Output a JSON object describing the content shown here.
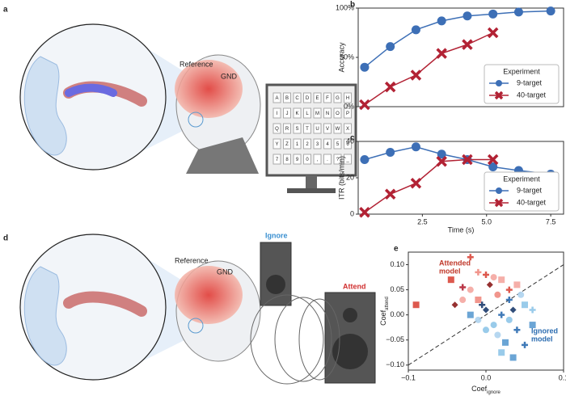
{
  "panels": {
    "a": "a",
    "d": "d"
  },
  "illustration_a": {
    "reference": "Reference",
    "gnd": "GND",
    "monitor_keys": [
      [
        "A",
        "B",
        "C",
        "D",
        "E",
        "F",
        "G",
        "H"
      ],
      [
        "I",
        "J",
        "K",
        "L",
        "M",
        "N",
        "O",
        "P"
      ],
      [
        "Q",
        "R",
        "S",
        "T",
        "U",
        "V",
        "W",
        "X"
      ],
      [
        "Y",
        "Z",
        "1",
        "2",
        "3",
        "4",
        "5",
        "6"
      ],
      [
        "7",
        "8",
        "9",
        "0",
        ",",
        ".",
        "?",
        "_"
      ]
    ]
  },
  "illustration_d": {
    "reference": "Reference",
    "gnd": "GND",
    "ignore": "Ignore",
    "attend": "Attend"
  },
  "chart_data": [
    {
      "type": "line",
      "label": "b",
      "ylabel": "Accuracy",
      "xlim": [
        0,
        8
      ],
      "ylim": [
        0,
        100
      ],
      "yticks": [
        {
          "value": 0,
          "label": "0%"
        },
        {
          "value": 50,
          "label": "50%"
        },
        {
          "value": 100,
          "label": "100%"
        }
      ],
      "legend_title": "Experiment",
      "legend": "lower right",
      "series": [
        {
          "name": "9-target",
          "color": "#3d6fb6",
          "marker": "circle",
          "x": [
            0.25,
            1.25,
            2.25,
            3.25,
            4.25,
            5.25,
            6.25,
            7.5
          ],
          "values": [
            40,
            61,
            78,
            87,
            92,
            94,
            96,
            97
          ]
        },
        {
          "name": "40-target",
          "color": "#b22234",
          "marker": "cross",
          "x": [
            0.25,
            1.25,
            2.25,
            3.25,
            4.25,
            5.25
          ],
          "values": [
            2,
            20,
            32,
            54,
            63,
            75
          ]
        }
      ]
    },
    {
      "type": "line",
      "label": "c",
      "ylabel": "ITR (bits/min)",
      "xlabel": "Time (s)",
      "xlim": [
        0,
        8
      ],
      "ylim": [
        0,
        40
      ],
      "yticks": [
        0,
        20,
        40
      ],
      "xticks": [
        2.5,
        {
          "value": 5,
          "label": "5.0"
        },
        7.5
      ],
      "legend_title": "Experiment",
      "legend": "lower right",
      "series": [
        {
          "name": "9-target",
          "color": "#3d6fb6",
          "marker": "circle",
          "x": [
            0.25,
            1.25,
            2.25,
            3.25,
            4.25,
            5.25,
            6.25,
            7.5
          ],
          "values": [
            30,
            34,
            37,
            33,
            30,
            26,
            24,
            22
          ]
        },
        {
          "name": "40-target",
          "color": "#b22234",
          "marker": "cross",
          "x": [
            0.25,
            1.25,
            2.25,
            3.25,
            4.25,
            5.25
          ],
          "values": [
            1,
            11,
            17,
            29,
            30,
            30
          ]
        }
      ]
    },
    {
      "type": "scatter",
      "label": "e",
      "ylabel": {
        "text": "Coef",
        "sub": "attend"
      },
      "xlabel": {
        "text": "Coef",
        "sub": "ignore"
      },
      "xlim": [
        -0.1,
        0.1
      ],
      "ylim": [
        -0.11,
        0.125
      ],
      "xticks": [
        {
          "value": -0.1,
          "label": "−0.1"
        },
        {
          "value": 0,
          "label": "0.0"
        },
        0.1
      ],
      "yticks": [
        {
          "value": -0.1,
          "label": "−0.10"
        },
        {
          "value": -0.05,
          "label": "−0.05"
        },
        {
          "value": 0,
          "label": "0.00"
        },
        {
          "value": 0.05,
          "label": "0.05"
        },
        {
          "value": 0.1,
          "label": "0.10"
        }
      ],
      "annotations": [
        {
          "lines": [
            "Attended",
            "model"
          ],
          "color": "#c0392b"
        },
        {
          "lines": [
            "Ignored",
            "model"
          ],
          "color": "#2b6cb0"
        }
      ],
      "x": [
        -0.09,
        -0.02,
        -0.045,
        -0.03,
        -0.01,
        0.0,
        0.01,
        0.02,
        -0.02,
        0.005,
        -0.04,
        -0.01,
        0.03,
        -0.03,
        0.015,
        0.04,
        0.02,
        0.03,
        0.05,
        0.04,
        0.05,
        0.02,
        0.01,
        0.0,
        -0.01,
        0.06,
        0.06,
        0.03,
        -0.005,
        0.015,
        0.035,
        0.0,
        -0.02,
        0.045,
        0.025,
        0.035
      ],
      "values": [
        0.02,
        0.115,
        0.07,
        0.055,
        0.085,
        0.08,
        0.075,
        0.07,
        0.05,
        0.06,
        0.02,
        0.03,
        0.05,
        0.03,
        0.04,
        0.06,
        0.0,
        -0.01,
        0.02,
        -0.03,
        -0.06,
        -0.075,
        -0.02,
        0.01,
        -0.01,
        0.01,
        -0.02,
        0.03,
        0.02,
        -0.04,
        0.01,
        -0.03,
        0.0,
        0.04,
        -0.055,
        -0.085
      ],
      "colors": [
        "#d9473b",
        "#d9473b",
        "#d9473b",
        "#b22234",
        "#f08a80",
        "#d9473b",
        "#f4a6a0",
        "#f4a6a0",
        "#f4a6a0",
        "#8b1a1a",
        "#8b1a1a",
        "#f08a80",
        "#d9473b",
        "#f4a6a0",
        "#f08a80",
        "#f4a6a0",
        "#2b6cb0",
        "#8ec5e8",
        "#8ec5e8",
        "#2b6cb0",
        "#2b6cb0",
        "#8ec5e8",
        "#8ec5e8",
        "#1a3a6b",
        "#aed3ee",
        "#8ec5e8",
        "#5b9bd0",
        "#2b6cb0",
        "#1a3a6b",
        "#aed3ee",
        "#1a3a6b",
        "#8ec5e8",
        "#5b9bd0",
        "#aed3ee",
        "#5b9bd0",
        "#5b9bd0"
      ],
      "markers": [
        "square",
        "plus",
        "square",
        "plus",
        "plus",
        "plus",
        "circle",
        "square",
        "circle",
        "diamond",
        "diamond",
        "square",
        "plus",
        "circle",
        "circle",
        "square",
        "plus",
        "circle",
        "square",
        "plus",
        "plus",
        "square",
        "circle",
        "diamond",
        "circle",
        "plus",
        "square",
        "plus",
        "plus",
        "circle",
        "diamond",
        "circle",
        "square",
        "circle",
        "square",
        "square"
      ]
    }
  ]
}
